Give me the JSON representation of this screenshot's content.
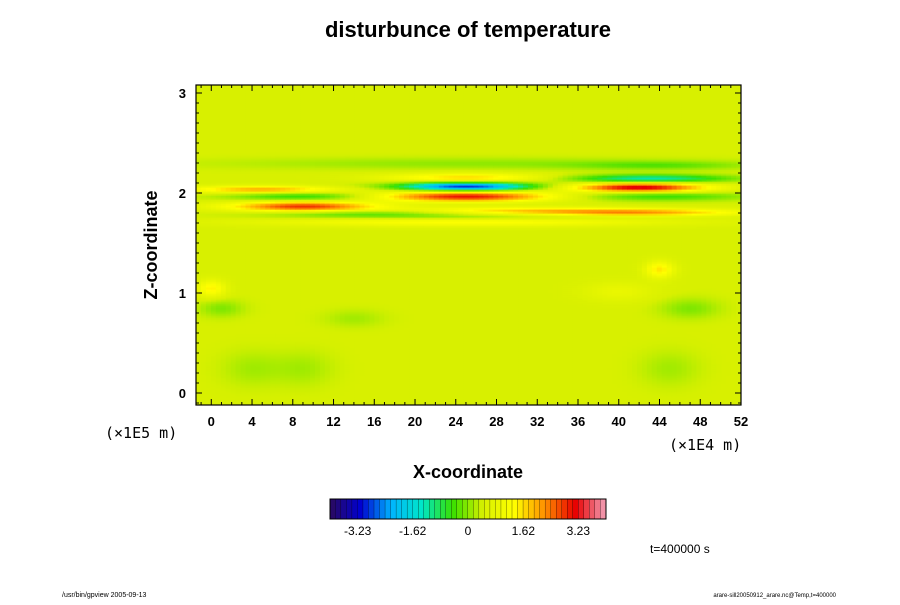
{
  "chart_data": {
    "type": "heatmap",
    "title": "disturbunce of temperature",
    "xlabel": "X-coordinate",
    "ylabel": "Z-coordinate",
    "x_ticks": [
      0,
      4,
      8,
      12,
      16,
      20,
      24,
      28,
      32,
      36,
      40,
      44,
      48,
      52
    ],
    "y_ticks": [
      0,
      1,
      2,
      3
    ],
    "xlim": [
      -1.5,
      52
    ],
    "ylim": [
      -0.12,
      3.08
    ],
    "x_unit": "(×1E4 m)",
    "y_unit": "(×1E5 m)",
    "colorbar": {
      "tick_values": [
        -3.23,
        -1.62,
        0,
        1.62,
        3.23
      ],
      "tick_labels": [
        "-3.23",
        "-1.62",
        "0",
        "1.62",
        "3.23"
      ],
      "range": [
        -4.04,
        4.04
      ],
      "colormap": [
        "#2b0a5e",
        "#0000d0",
        "#00b4ff",
        "#00e6c8",
        "#38e000",
        "#d8f000",
        "#ffff00",
        "#ff9000",
        "#e80000",
        "#f2a0b8"
      ]
    },
    "background_value": 0.45,
    "features": [
      {
        "x": 25,
        "z": 2.07,
        "sx": 4.5,
        "sz": 0.028,
        "value": -3.4
      },
      {
        "x": 25,
        "z": 1.97,
        "sx": 6.0,
        "sz": 0.035,
        "value": 2.6
      },
      {
        "x": 25,
        "z": 2.16,
        "sx": 5.5,
        "sz": 0.03,
        "value": 1.2
      },
      {
        "x": 9,
        "z": 1.87,
        "sx": 5.0,
        "sz": 0.035,
        "value": 2.4
      },
      {
        "x": 9,
        "z": 1.97,
        "sx": 5.0,
        "sz": 0.03,
        "value": -1.0
      },
      {
        "x": 5,
        "z": 2.04,
        "sx": 5.0,
        "sz": 0.025,
        "value": 1.6
      },
      {
        "x": 42,
        "z": 2.06,
        "sx": 4.5,
        "sz": 0.03,
        "value": 2.9
      },
      {
        "x": 43,
        "z": 2.15,
        "sx": 5.5,
        "sz": 0.028,
        "value": -1.7
      },
      {
        "x": 44,
        "z": 1.97,
        "sx": 6.0,
        "sz": 0.03,
        "value": -0.9
      },
      {
        "x": 42,
        "z": 1.81,
        "sx": 7.0,
        "sz": 0.025,
        "value": 1.6
      },
      {
        "x": 30,
        "z": 1.83,
        "sx": 8.0,
        "sz": 0.025,
        "value": 1.1
      },
      {
        "x": 15,
        "z": 1.8,
        "sx": 7.0,
        "sz": 0.025,
        "value": -0.8
      },
      {
        "x": 25,
        "z": 1.72,
        "sx": 14.0,
        "sz": 0.035,
        "value": 0.9
      },
      {
        "x": 25,
        "z": 1.76,
        "sx": 12.0,
        "sz": 0.02,
        "value": -0.6
      },
      {
        "x": 25,
        "z": 2.3,
        "sx": 16.0,
        "sz": 0.04,
        "value": -0.4
      },
      {
        "x": 44,
        "z": 2.28,
        "sx": 6.0,
        "sz": 0.03,
        "value": -0.6
      },
      {
        "x": 44,
        "z": 1.24,
        "sx": 1.0,
        "sz": 0.06,
        "value": 1.1
      },
      {
        "x": 40,
        "z": 1.02,
        "sx": 2.5,
        "sz": 0.07,
        "value": 0.4
      },
      {
        "x": 0,
        "z": 1.05,
        "sx": 1.0,
        "sz": 0.06,
        "value": 1.0
      },
      {
        "x": 47,
        "z": 0.85,
        "sx": 2.0,
        "sz": 0.07,
        "value": -0.5
      },
      {
        "x": 1,
        "z": 0.85,
        "sx": 1.5,
        "sz": 0.06,
        "value": -0.5
      },
      {
        "x": 14,
        "z": 0.75,
        "sx": 2.0,
        "sz": 0.06,
        "value": -0.3
      },
      {
        "x": 4,
        "z": 0.25,
        "sx": 2.0,
        "sz": 0.12,
        "value": -0.3
      },
      {
        "x": 9,
        "z": 0.25,
        "sx": 2.0,
        "sz": 0.12,
        "value": -0.3
      },
      {
        "x": 45,
        "z": 0.25,
        "sx": 2.0,
        "sz": 0.12,
        "value": -0.3
      }
    ]
  },
  "annotations": {
    "time_label": "t=400000 s",
    "footer_left": "/usr/bin/gpview 2005-09-13",
    "footer_right": "arare-sill20050912_arare.nc@Temp,t=400000"
  }
}
